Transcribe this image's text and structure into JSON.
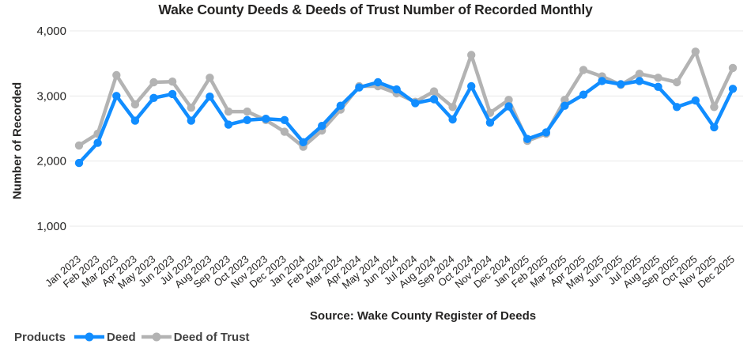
{
  "title": "Wake County Deeds & Deeds of Trust Number of Recorded Monthly",
  "source": "Source: Wake County Register of Deeds",
  "legend": {
    "title": "Products",
    "position": "bottom-left",
    "items": [
      {
        "label": "Deed",
        "color": "#118DFF"
      },
      {
        "label": "Deed of Trust",
        "color": "#B3B3B3"
      }
    ]
  },
  "colors": {
    "deed": "#118DFF",
    "deed_of_trust": "#B3B3B3",
    "gridline": "#E8E8E8",
    "axis_text": "#252423",
    "legend_text": "#424242"
  },
  "chart_data": {
    "type": "line",
    "title": "Wake County Deeds & Deeds of Trust Number of Recorded Monthly",
    "xlabel": "",
    "ylabel": "Number of Recorded",
    "ylim": [
      650,
      4000
    ],
    "yticks": [
      1000,
      2000,
      3000,
      4000
    ],
    "grid": true,
    "legend_position": "bottom-left",
    "x": [
      "Jan 2023",
      "Feb 2023",
      "Mar 2023",
      "Apr 2023",
      "May 2023",
      "Jun 2023",
      "Jul 2023",
      "Aug 2023",
      "Sep 2023",
      "Oct 2023",
      "Nov 2023",
      "Dec 2023",
      "Jan 2024",
      "Feb 2024",
      "Mar 2024",
      "Apr 2024",
      "May 2024",
      "Jun 2024",
      "Jul 2024",
      "Aug 2024",
      "Sep 2024",
      "Oct 2024",
      "Nov 2024",
      "Dec 2024",
      "Jan 2025",
      "Feb 2025",
      "Mar 2025",
      "Apr 2025",
      "May 2025",
      "Jun 2025",
      "Jul 2025",
      "Aug 2025",
      "Sep 2025",
      "Oct 2025",
      "Nov 2025",
      "Dec 2025"
    ],
    "series": [
      {
        "name": "Deed of Trust",
        "color": "#B3B3B3",
        "values": [
          2240,
          2420,
          3320,
          2870,
          3210,
          3220,
          2820,
          3280,
          2760,
          2760,
          2630,
          2450,
          2220,
          2470,
          2790,
          3150,
          3150,
          3040,
          2910,
          3070,
          2830,
          3630,
          2740,
          2940,
          2310,
          2420,
          2940,
          3400,
          3300,
          3170,
          3340,
          3280,
          3210,
          3680,
          2830,
          3430
        ]
      },
      {
        "name": "Deed",
        "color": "#118DFF",
        "values": [
          1970,
          2280,
          3000,
          2620,
          2970,
          3030,
          2620,
          2990,
          2560,
          2630,
          2650,
          2630,
          2290,
          2540,
          2850,
          3130,
          3210,
          3100,
          2890,
          2950,
          2640,
          3150,
          2590,
          2840,
          2340,
          2440,
          2850,
          3020,
          3230,
          3180,
          3230,
          3140,
          2830,
          2930,
          2520,
          3110
        ]
      }
    ]
  }
}
